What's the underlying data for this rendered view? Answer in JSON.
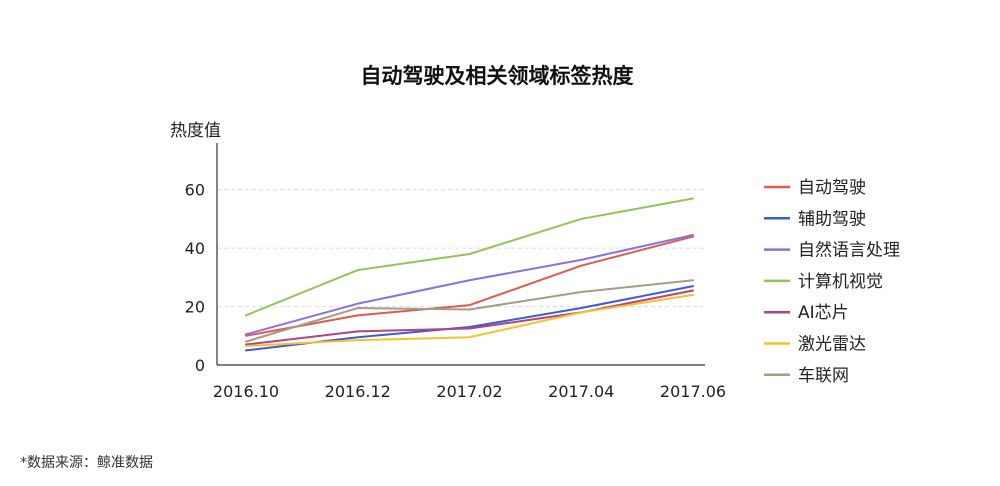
{
  "chart_data": {
    "type": "line",
    "title": "自动驾驶及相关领域标签热度",
    "ylabel": "热度值",
    "xlabel": "",
    "categories": [
      "2016.10",
      "2016.12",
      "2017.02",
      "2017.04",
      "2017.06"
    ],
    "yticks": [
      0,
      20,
      40,
      60
    ],
    "ylim": [
      0,
      76
    ],
    "grid": "horizontal-dashed",
    "legend_position": "right",
    "series": [
      {
        "name": "自动驾驶",
        "color": "#e05a4f",
        "values": [
          10,
          17,
          20.5,
          34,
          44
        ]
      },
      {
        "name": "辅助驾驶",
        "color": "#3d5bd6",
        "values": [
          5,
          9.5,
          13,
          19.5,
          27
        ]
      },
      {
        "name": "自然语言处理",
        "color": "#8a6fe8",
        "values": [
          10.5,
          21,
          29,
          36,
          44.5
        ]
      },
      {
        "name": "计算机视觉",
        "color": "#95c25a",
        "values": [
          17,
          32.5,
          38,
          50,
          57
        ]
      },
      {
        "name": "AI芯片",
        "color": "#b2437f",
        "values": [
          7,
          11.5,
          12.5,
          18,
          25.5
        ]
      },
      {
        "name": "激光雷达",
        "color": "#f6c22c",
        "values": [
          6.5,
          8.5,
          9.5,
          18,
          24
        ]
      },
      {
        "name": "车联网",
        "color": "#a89a86",
        "values": [
          8,
          19.5,
          19,
          25,
          29
        ]
      }
    ]
  },
  "source_note": "*数据来源：鲸准数据"
}
